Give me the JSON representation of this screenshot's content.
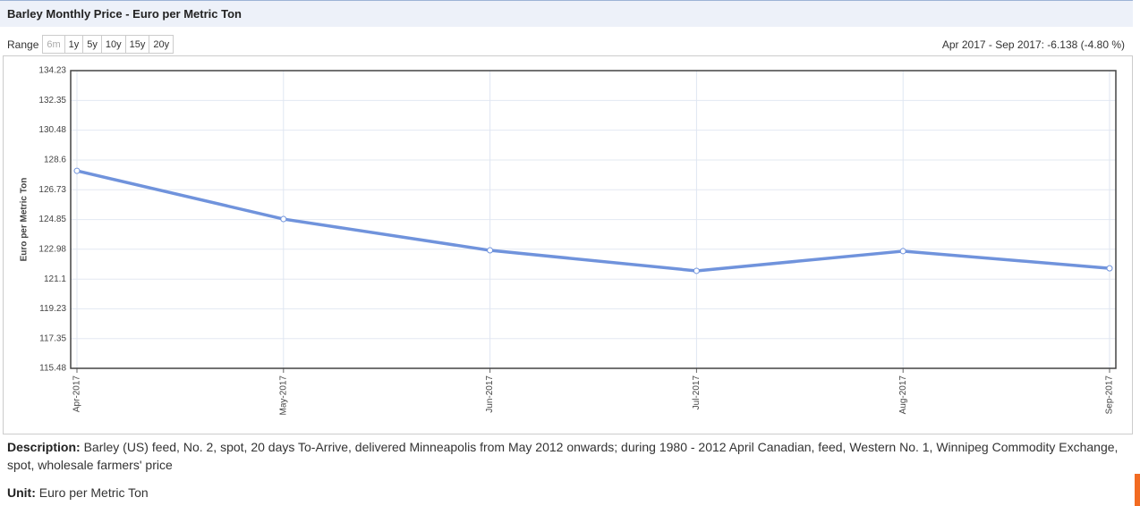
{
  "header": {
    "title": "Barley Monthly Price - Euro per Metric Ton"
  },
  "range": {
    "label": "Range",
    "buttons": [
      "6m",
      "1y",
      "5y",
      "10y",
      "15y",
      "20y"
    ],
    "change": "Apr 2017 - Sep 2017: -6.138 (-4.80 %)"
  },
  "chart_data": {
    "type": "line",
    "ylabel": "Euro per Metric Ton",
    "categories": [
      "Apr-2017",
      "May-2017",
      "Jun-2017",
      "Jul-2017",
      "Aug-2017",
      "Sep-2017"
    ],
    "series": [
      {
        "name": "Barley",
        "color": "#7093dc",
        "values": [
          127.92,
          124.88,
          122.91,
          121.62,
          122.86,
          121.78
        ]
      }
    ],
    "ylim": [
      115.48,
      134.23
    ],
    "yticks": [
      115.48,
      117.35,
      119.23,
      121.1,
      122.98,
      124.85,
      126.73,
      128.6,
      130.48,
      132.35,
      134.23
    ],
    "grid": true
  },
  "description": {
    "label": "Description:",
    "text": "Barley (US) feed, No. 2, spot, 20 days To-Arrive, delivered Minneapolis from May 2012 onwards; during 1980 - 2012 April Canadian, feed, Western No. 1, Winnipeg Commodity Exchange, spot, wholesale farmers' price"
  },
  "unit": {
    "label": "Unit:",
    "text": "Euro per Metric Ton"
  }
}
